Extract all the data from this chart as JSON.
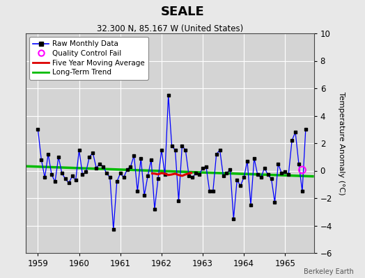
{
  "title": "SEALE",
  "subtitle": "32.300 N, 85.167 W (United States)",
  "ylabel": "Temperature Anomaly (°C)",
  "watermark": "Berkeley Earth",
  "xlim": [
    1958.7,
    1965.7
  ],
  "ylim": [
    -6,
    10
  ],
  "yticks": [
    -6,
    -4,
    -2,
    0,
    2,
    4,
    6,
    8,
    10
  ],
  "xticks": [
    1959,
    1960,
    1961,
    1962,
    1963,
    1964,
    1965
  ],
  "bg_color": "#e8e8e8",
  "plot_bg_color": "#d4d4d4",
  "grid_color": "#ffffff",
  "raw_x": [
    1959.0,
    1959.083,
    1959.167,
    1959.25,
    1959.333,
    1959.417,
    1959.5,
    1959.583,
    1959.667,
    1959.75,
    1959.833,
    1959.917,
    1960.0,
    1960.083,
    1960.167,
    1960.25,
    1960.333,
    1960.417,
    1960.5,
    1960.583,
    1960.667,
    1960.75,
    1960.833,
    1960.917,
    1961.0,
    1961.083,
    1961.167,
    1961.25,
    1961.333,
    1961.417,
    1961.5,
    1961.583,
    1961.667,
    1961.75,
    1961.833,
    1961.917,
    1962.0,
    1962.083,
    1962.167,
    1962.25,
    1962.333,
    1962.417,
    1962.5,
    1962.583,
    1962.667,
    1962.75,
    1962.833,
    1962.917,
    1963.0,
    1963.083,
    1963.167,
    1963.25,
    1963.333,
    1963.417,
    1963.5,
    1963.583,
    1963.667,
    1963.75,
    1963.833,
    1963.917,
    1964.0,
    1964.083,
    1964.167,
    1964.25,
    1964.333,
    1964.417,
    1964.5,
    1964.583,
    1964.667,
    1964.75,
    1964.833,
    1964.917,
    1965.0,
    1965.083,
    1965.167,
    1965.25,
    1965.333,
    1965.417,
    1965.5
  ],
  "raw_y": [
    3.0,
    0.8,
    -0.5,
    1.2,
    -0.3,
    -0.8,
    1.0,
    -0.2,
    -0.6,
    -0.9,
    -0.4,
    -0.7,
    1.5,
    -0.3,
    -0.1,
    1.0,
    1.3,
    0.2,
    0.5,
    0.3,
    -0.2,
    -0.5,
    -4.3,
    -0.8,
    -0.2,
    -0.5,
    0.1,
    0.3,
    1.1,
    -1.5,
    0.9,
    -1.8,
    -0.4,
    0.8,
    -2.8,
    -0.6,
    1.5,
    -0.3,
    5.5,
    1.8,
    1.5,
    -2.2,
    1.8,
    1.5,
    -0.4,
    -0.5,
    -0.2,
    -0.3,
    0.2,
    0.3,
    -1.5,
    -1.5,
    1.2,
    1.5,
    -0.4,
    -0.2,
    0.1,
    -3.5,
    -0.7,
    -1.1,
    -0.5,
    0.7,
    -2.5,
    0.9,
    -0.3,
    -0.5,
    0.2,
    -0.3,
    -0.6,
    -2.3,
    0.5,
    -0.2,
    -0.1,
    -0.3,
    2.2,
    2.8,
    0.5,
    -1.5,
    3.0
  ],
  "moving_avg_x": [
    1961.75,
    1961.833,
    1961.917,
    1962.0,
    1962.083,
    1962.167,
    1962.25,
    1962.333,
    1962.417,
    1962.5,
    1962.583,
    1962.667,
    1962.75
  ],
  "moving_avg_y": [
    -0.2,
    -0.22,
    -0.27,
    -0.18,
    -0.22,
    -0.32,
    -0.28,
    -0.22,
    -0.32,
    -0.38,
    -0.28,
    -0.2,
    -0.15
  ],
  "trend_x": [
    1958.7,
    1965.7
  ],
  "trend_y": [
    0.32,
    -0.42
  ],
  "qc_fail_x": [
    1965.417
  ],
  "qc_fail_y": [
    0.05
  ],
  "raw_line_color": "#0000ff",
  "raw_marker_color": "#000000",
  "moving_avg_color": "#dd0000",
  "trend_color": "#00bb00",
  "qc_color": "#ff00ff"
}
